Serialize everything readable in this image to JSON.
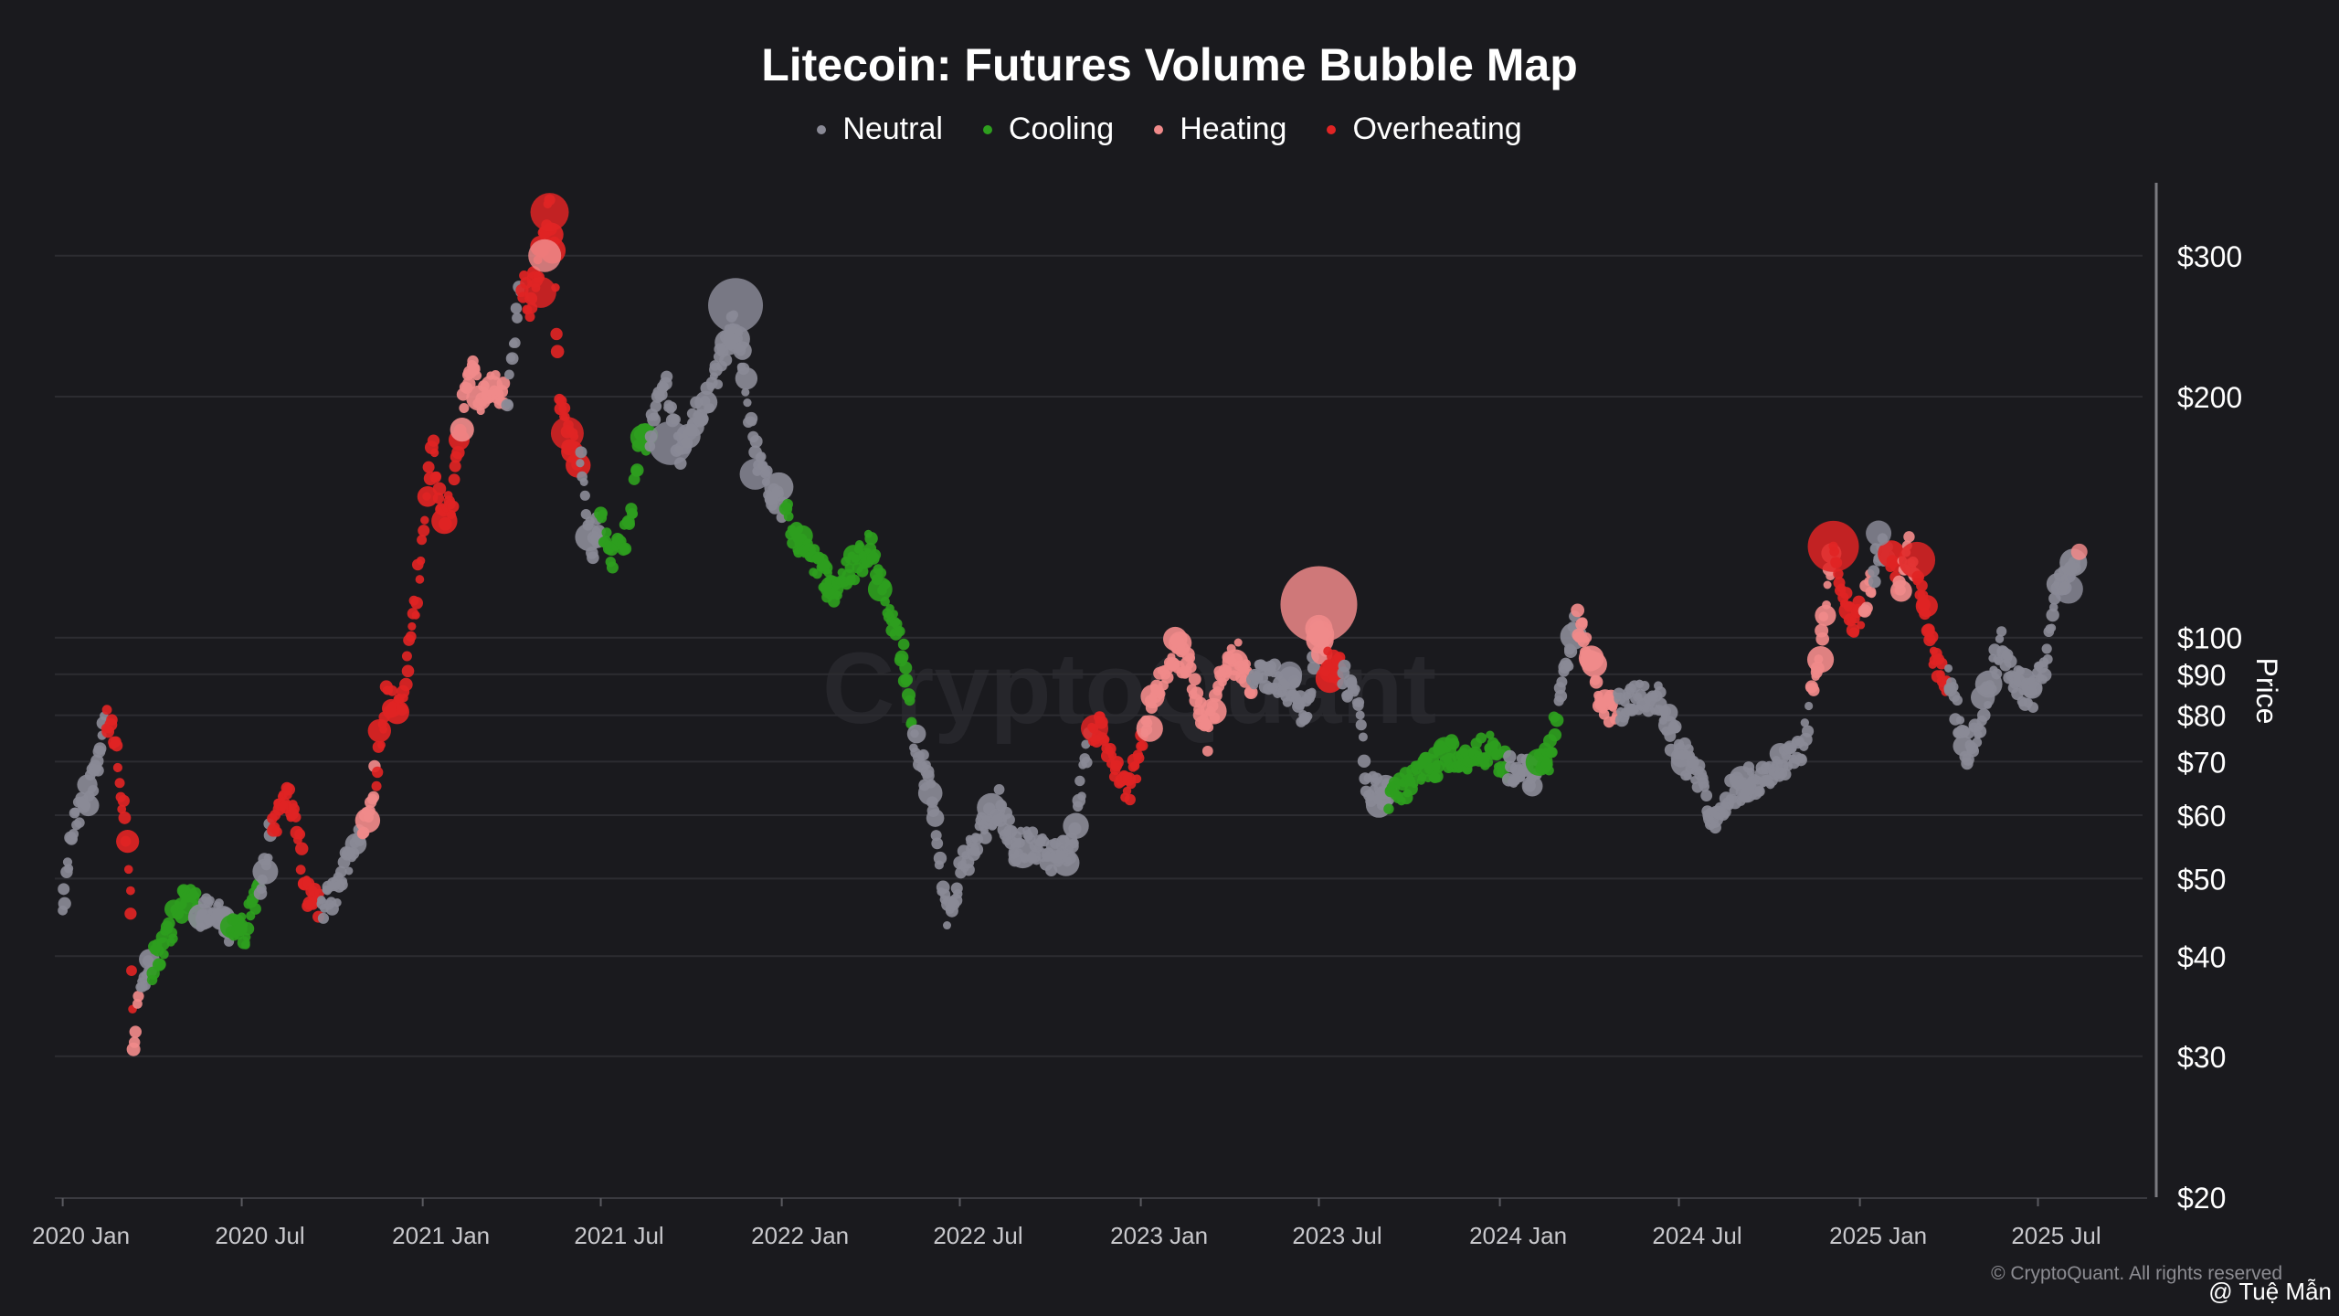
{
  "chart_data": {
    "type": "scatter",
    "title": "Litecoin: Futures Volume Bubble Map",
    "ylabel": "Price",
    "yscale": "log",
    "ylim": [
      20,
      370
    ],
    "xlim": [
      "2019-12-24",
      "2025-10-20"
    ],
    "y_ticks": [
      {
        "value": 20,
        "label": "$20"
      },
      {
        "value": 30,
        "label": "$30"
      },
      {
        "value": 40,
        "label": "$40"
      },
      {
        "value": 50,
        "label": "$50"
      },
      {
        "value": 60,
        "label": "$60"
      },
      {
        "value": 70,
        "label": "$70"
      },
      {
        "value": 80,
        "label": "$80"
      },
      {
        "value": 90,
        "label": "$90"
      },
      {
        "value": 100,
        "label": "$100"
      },
      {
        "value": 200,
        "label": "$200"
      },
      {
        "value": 300,
        "label": "$300"
      }
    ],
    "x_ticks": [
      {
        "date": "2020-01-01",
        "label": "2020 Jan"
      },
      {
        "date": "2020-07-01",
        "label": "2020 Jul"
      },
      {
        "date": "2021-01-01",
        "label": "2021 Jan"
      },
      {
        "date": "2021-07-01",
        "label": "2021 Jul"
      },
      {
        "date": "2022-01-01",
        "label": "2022 Jan"
      },
      {
        "date": "2022-07-01",
        "label": "2022 Jul"
      },
      {
        "date": "2023-01-01",
        "label": "2023 Jan"
      },
      {
        "date": "2023-07-01",
        "label": "2023 Jul"
      },
      {
        "date": "2024-01-01",
        "label": "2024 Jan"
      },
      {
        "date": "2024-07-01",
        "label": "2024 Jul"
      },
      {
        "date": "2025-01-01",
        "label": "2025 Jan"
      },
      {
        "date": "2025-07-01",
        "label": "2025 Jul"
      }
    ],
    "grid": true,
    "legend_position": "top-center",
    "series": [
      {
        "name": "Neutral",
        "color": "#8a8a96"
      },
      {
        "name": "Cooling",
        "color": "#2e9e1e"
      },
      {
        "name": "Heating",
        "color": "#f08a8a"
      },
      {
        "name": "Overheating",
        "color": "#e02424"
      }
    ],
    "price_path": [
      [
        "2020-01-01",
        45,
        "Neutral"
      ],
      [
        "2020-01-12",
        58,
        "Neutral"
      ],
      [
        "2020-01-26",
        63,
        "Neutral"
      ],
      [
        "2020-02-05",
        70,
        "Neutral"
      ],
      [
        "2020-02-14",
        80,
        "Overheating"
      ],
      [
        "2020-02-24",
        73,
        "Overheating"
      ],
      [
        "2020-03-03",
        60,
        "Overheating"
      ],
      [
        "2020-03-10",
        50,
        "Overheating"
      ],
      [
        "2020-03-13",
        31,
        "Heating"
      ],
      [
        "2020-03-20",
        36,
        "Neutral"
      ],
      [
        "2020-04-01",
        39,
        "Cooling"
      ],
      [
        "2020-04-20",
        43,
        "Cooling"
      ],
      [
        "2020-05-05",
        48,
        "Cooling"
      ],
      [
        "2020-05-20",
        45,
        "Neutral"
      ],
      [
        "2020-06-05",
        47,
        "Neutral"
      ],
      [
        "2020-06-20",
        43,
        "Cooling"
      ],
      [
        "2020-07-05",
        43,
        "Cooling"
      ],
      [
        "2020-07-20",
        50,
        "Neutral"
      ],
      [
        "2020-08-01",
        58,
        "Overheating"
      ],
      [
        "2020-08-15",
        63,
        "Overheating"
      ],
      [
        "2020-08-25",
        60,
        "Overheating"
      ],
      [
        "2020-09-05",
        48,
        "Overheating"
      ],
      [
        "2020-09-20",
        46,
        "Neutral"
      ],
      [
        "2020-10-05",
        48,
        "Neutral"
      ],
      [
        "2020-10-20",
        54,
        "Neutral"
      ],
      [
        "2020-11-01",
        58,
        "Heating"
      ],
      [
        "2020-11-15",
        68,
        "Overheating"
      ],
      [
        "2020-11-25",
        85,
        "Overheating"
      ],
      [
        "2020-12-10",
        80,
        "Overheating"
      ],
      [
        "2020-12-25",
        110,
        "Overheating"
      ],
      [
        "2021-01-05",
        150,
        "Overheating"
      ],
      [
        "2021-01-12",
        170,
        "Overheating"
      ],
      [
        "2021-01-22",
        140,
        "Overheating"
      ],
      [
        "2021-02-01",
        150,
        "Overheating"
      ],
      [
        "2021-02-10",
        190,
        "Heating"
      ],
      [
        "2021-02-20",
        225,
        "Heating"
      ],
      [
        "2021-03-01",
        195,
        "Heating"
      ],
      [
        "2021-03-15",
        210,
        "Heating"
      ],
      [
        "2021-03-28",
        195,
        "Neutral"
      ],
      [
        "2021-04-05",
        240,
        "Neutral"
      ],
      [
        "2021-04-12",
        280,
        "Overheating"
      ],
      [
        "2021-04-20",
        260,
        "Overheating"
      ],
      [
        "2021-05-01",
        300,
        "Overheating"
      ],
      [
        "2021-05-10",
        350,
        "Overheating"
      ],
      [
        "2021-05-15",
        300,
        "Overheating"
      ],
      [
        "2021-05-20",
        200,
        "Overheating"
      ],
      [
        "2021-05-28",
        180,
        "Overheating"
      ],
      [
        "2021-06-10",
        170,
        "Neutral"
      ],
      [
        "2021-06-22",
        130,
        "Neutral"
      ],
      [
        "2021-07-01",
        140,
        "Cooling"
      ],
      [
        "2021-07-15",
        125,
        "Cooling"
      ],
      [
        "2021-08-01",
        140,
        "Cooling"
      ],
      [
        "2021-08-10",
        175,
        "Cooling"
      ],
      [
        "2021-08-20",
        180,
        "Neutral"
      ],
      [
        "2021-09-05",
        210,
        "Neutral"
      ],
      [
        "2021-09-20",
        170,
        "Neutral"
      ],
      [
        "2021-10-05",
        190,
        "Neutral"
      ],
      [
        "2021-10-20",
        200,
        "Neutral"
      ],
      [
        "2021-11-05",
        230,
        "Neutral"
      ],
      [
        "2021-11-15",
        250,
        "Neutral"
      ],
      [
        "2021-11-25",
        210,
        "Neutral"
      ],
      [
        "2021-12-05",
        170,
        "Neutral"
      ],
      [
        "2021-12-20",
        155,
        "Neutral"
      ],
      [
        "2022-01-05",
        145,
        "Cooling"
      ],
      [
        "2022-01-20",
        130,
        "Cooling"
      ],
      [
        "2022-02-05",
        125,
        "Cooling"
      ],
      [
        "2022-02-20",
        115,
        "Cooling"
      ],
      [
        "2022-03-10",
        120,
        "Cooling"
      ],
      [
        "2022-04-01",
        130,
        "Cooling"
      ],
      [
        "2022-04-20",
        110,
        "Cooling"
      ],
      [
        "2022-05-05",
        95,
        "Cooling"
      ],
      [
        "2022-05-15",
        75,
        "Neutral"
      ],
      [
        "2022-06-01",
        65,
        "Neutral"
      ],
      [
        "2022-06-18",
        45,
        "Neutral"
      ],
      [
        "2022-07-05",
        52,
        "Neutral"
      ],
      [
        "2022-07-25",
        58,
        "Neutral"
      ],
      [
        "2022-08-10",
        62,
        "Neutral"
      ],
      [
        "2022-08-25",
        55,
        "Neutral"
      ],
      [
        "2022-09-15",
        55,
        "Neutral"
      ],
      [
        "2022-10-05",
        53,
        "Neutral"
      ],
      [
        "2022-10-25",
        54,
        "Neutral"
      ],
      [
        "2022-11-05",
        70,
        "Neutral"
      ],
      [
        "2022-11-12",
        75,
        "Overheating"
      ],
      [
        "2022-11-20",
        78,
        "Overheating"
      ],
      [
        "2022-12-05",
        68,
        "Overheating"
      ],
      [
        "2022-12-20",
        64,
        "Overheating"
      ],
      [
        "2023-01-05",
        75,
        "Heating"
      ],
      [
        "2023-01-20",
        88,
        "Heating"
      ],
      [
        "2023-02-05",
        96,
        "Heating"
      ],
      [
        "2023-02-20",
        93,
        "Heating"
      ],
      [
        "2023-03-10",
        75,
        "Heating"
      ],
      [
        "2023-03-25",
        90,
        "Heating"
      ],
      [
        "2023-04-10",
        95,
        "Heating"
      ],
      [
        "2023-04-25",
        88,
        "Neutral"
      ],
      [
        "2023-05-15",
        90,
        "Neutral"
      ],
      [
        "2023-06-05",
        85,
        "Neutral"
      ],
      [
        "2023-06-20",
        80,
        "Neutral"
      ],
      [
        "2023-07-01",
        105,
        "Heating"
      ],
      [
        "2023-07-10",
        93,
        "Overheating"
      ],
      [
        "2023-07-25",
        90,
        "Neutral"
      ],
      [
        "2023-08-10",
        82,
        "Neutral"
      ],
      [
        "2023-08-20",
        65,
        "Neutral"
      ],
      [
        "2023-09-10",
        63,
        "Cooling"
      ],
      [
        "2023-10-01",
        66,
        "Cooling"
      ],
      [
        "2023-10-20",
        68,
        "Cooling"
      ],
      [
        "2023-11-10",
        72,
        "Cooling"
      ],
      [
        "2023-12-05",
        70,
        "Cooling"
      ],
      [
        "2023-12-20",
        73,
        "Cooling"
      ],
      [
        "2024-01-10",
        68,
        "Neutral"
      ],
      [
        "2024-01-25",
        68,
        "Neutral"
      ],
      [
        "2024-02-10",
        68,
        "Cooling"
      ],
      [
        "2024-02-20",
        71,
        "Cooling"
      ],
      [
        "2024-03-01",
        82,
        "Neutral"
      ],
      [
        "2024-03-10",
        95,
        "Neutral"
      ],
      [
        "2024-03-20",
        105,
        "Heating"
      ],
      [
        "2024-04-05",
        95,
        "Heating"
      ],
      [
        "2024-04-15",
        80,
        "Heating"
      ],
      [
        "2024-05-01",
        82,
        "Neutral"
      ],
      [
        "2024-05-20",
        85,
        "Neutral"
      ],
      [
        "2024-06-10",
        84,
        "Neutral"
      ],
      [
        "2024-06-25",
        75,
        "Neutral"
      ],
      [
        "2024-07-10",
        70,
        "Neutral"
      ],
      [
        "2024-07-25",
        66,
        "Neutral"
      ],
      [
        "2024-08-05",
        58,
        "Neutral"
      ],
      [
        "2024-08-20",
        64,
        "Neutral"
      ],
      [
        "2024-09-10",
        66,
        "Neutral"
      ],
      [
        "2024-10-01",
        68,
        "Neutral"
      ],
      [
        "2024-10-20",
        70,
        "Neutral"
      ],
      [
        "2024-11-05",
        73,
        "Neutral"
      ],
      [
        "2024-11-12",
        85,
        "Heating"
      ],
      [
        "2024-11-22",
        95,
        "Heating"
      ],
      [
        "2024-12-05",
        130,
        "Overheating"
      ],
      [
        "2024-12-15",
        115,
        "Overheating"
      ],
      [
        "2024-12-25",
        103,
        "Overheating"
      ],
      [
        "2025-01-05",
        110,
        "Heating"
      ],
      [
        "2025-01-15",
        120,
        "Neutral"
      ],
      [
        "2025-01-22",
        130,
        "Neutral"
      ],
      [
        "2025-02-01",
        125,
        "Overheating"
      ],
      [
        "2025-02-10",
        115,
        "Heating"
      ],
      [
        "2025-02-20",
        130,
        "Heating"
      ],
      [
        "2025-02-28",
        120,
        "Overheating"
      ],
      [
        "2025-03-10",
        105,
        "Overheating"
      ],
      [
        "2025-03-20",
        92,
        "Overheating"
      ],
      [
        "2025-04-01",
        88,
        "Neutral"
      ],
      [
        "2025-04-10",
        80,
        "Neutral"
      ],
      [
        "2025-04-20",
        72,
        "Neutral"
      ],
      [
        "2025-05-05",
        80,
        "Neutral"
      ],
      [
        "2025-05-15",
        90,
        "Neutral"
      ],
      [
        "2025-05-25",
        98,
        "Neutral"
      ],
      [
        "2025-06-10",
        88,
        "Neutral"
      ],
      [
        "2025-06-25",
        84,
        "Neutral"
      ],
      [
        "2025-07-10",
        95,
        "Neutral"
      ],
      [
        "2025-07-20",
        115,
        "Neutral"
      ],
      [
        "2025-08-01",
        120,
        "Neutral"
      ],
      [
        "2025-08-10",
        125,
        "Heating"
      ]
    ],
    "large_bubbles": [
      [
        "2021-05-10",
        340,
        "Overheating",
        21
      ],
      [
        "2021-05-05",
        300,
        "Heating",
        18
      ],
      [
        "2021-05-01",
        270,
        "Overheating",
        17
      ],
      [
        "2021-05-28",
        180,
        "Overheating",
        18
      ],
      [
        "2021-09-10",
        175,
        "Neutral",
        24
      ],
      [
        "2021-11-15",
        260,
        "Neutral",
        30
      ],
      [
        "2021-12-05",
        160,
        "Neutral",
        17
      ],
      [
        "2022-11-15",
        77,
        "Overheating",
        15
      ],
      [
        "2023-07-01",
        110,
        "Heating",
        42
      ],
      [
        "2023-06-01",
        90,
        "Neutral",
        14
      ],
      [
        "2024-12-05",
        130,
        "Overheating",
        28
      ],
      [
        "2025-01-20",
        135,
        "Neutral",
        14
      ],
      [
        "2025-02-28",
        125,
        "Overheating",
        20
      ],
      [
        "2025-08-01",
        115,
        "Neutral",
        16
      ],
      [
        "2025-08-12",
        128,
        "Heating",
        9
      ]
    ],
    "watermark": "CryptoQuant"
  },
  "footer": {
    "copyright": "© CryptoQuant. All rights reserved",
    "author": "@ Tuệ Mẫn"
  }
}
